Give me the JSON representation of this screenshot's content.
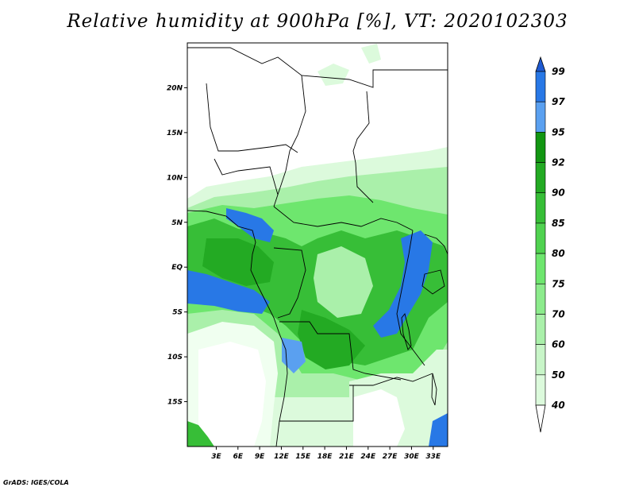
{
  "title": "Relative humidity at 900hPa [%], VT: 2020102303",
  "credit": "GrADS: IGES/COLA",
  "map": {
    "lon_range": [
      -1,
      35
    ],
    "lat_range": [
      -20,
      25
    ],
    "lat_ticks": [
      {
        "value": 20,
        "label": "20N"
      },
      {
        "value": 15,
        "label": "15N"
      },
      {
        "value": 10,
        "label": "10N"
      },
      {
        "value": 5,
        "label": "5N"
      },
      {
        "value": 0,
        "label": "EQ"
      },
      {
        "value": -5,
        "label": "5S"
      },
      {
        "value": -10,
        "label": "10S"
      },
      {
        "value": -15,
        "label": "15S"
      }
    ],
    "lon_ticks": [
      {
        "value": 3,
        "label": "3E"
      },
      {
        "value": 6,
        "label": "6E"
      },
      {
        "value": 9,
        "label": "9E"
      },
      {
        "value": 12,
        "label": "12E"
      },
      {
        "value": 15,
        "label": "15E"
      },
      {
        "value": 18,
        "label": "18E"
      },
      {
        "value": 21,
        "label": "21E"
      },
      {
        "value": 24,
        "label": "24E"
      },
      {
        "value": 27,
        "label": "27E"
      },
      {
        "value": 30,
        "label": "30E"
      },
      {
        "value": 33,
        "label": "33E"
      }
    ]
  },
  "colorbar": {
    "levels": [
      {
        "label": "40",
        "color": "#f0fff0"
      },
      {
        "label": "50",
        "color": "#dcfadc"
      },
      {
        "label": "60",
        "color": "#c8f5c8"
      },
      {
        "label": "70",
        "color": "#aaf0aa"
      },
      {
        "label": "75",
        "color": "#8ceb8c"
      },
      {
        "label": "80",
        "color": "#6ee66e"
      },
      {
        "label": "85",
        "color": "#50d250"
      },
      {
        "label": "90",
        "color": "#37be37"
      },
      {
        "label": "92",
        "color": "#23aa23"
      },
      {
        "label": "95",
        "color": "#129612"
      },
      {
        "label": "97",
        "color": "#5aa0f0"
      },
      {
        "label": "99",
        "color": "#2878e6"
      }
    ],
    "below_color": "#ffffff",
    "above_color": "#1e5ad2"
  },
  "colors": {
    "very_dry": "#ffffff",
    "dry": "#f0fff0",
    "light": "#c8f5c8",
    "mid": "#8ceb8c",
    "moist": "#50d250",
    "wet": "#23aa23",
    "saturated": "#2878e6"
  }
}
